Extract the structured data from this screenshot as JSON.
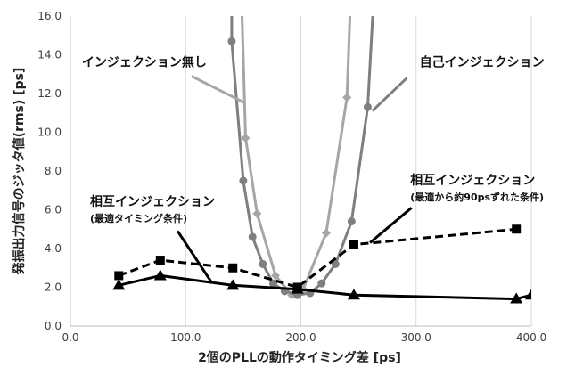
{
  "chart_data": {
    "type": "line",
    "xlabel": "2個のPLLの動作タイミング差 [ps]",
    "ylabel": "発振出力信号のジッタ値(rms) [ps]",
    "xlim": [
      0,
      400
    ],
    "ylim": [
      0,
      16
    ],
    "x_ticks": [
      "0.0",
      "100.0",
      "200.0",
      "300.0",
      "400.0"
    ],
    "y_ticks": [
      "0.0",
      "2.0",
      "4.0",
      "6.0",
      "8.0",
      "10.0",
      "12.0",
      "14.0",
      "16.0"
    ],
    "grid": "vertical",
    "series": [
      {
        "name": "インジェクション無し",
        "color": "#a6a6a6",
        "marker": "diamond",
        "dash": "solid",
        "points": [
          [
            147,
            20
          ],
          [
            152,
            9.7
          ],
          [
            162,
            5.8
          ],
          [
            178,
            2.6
          ],
          [
            192,
            1.6
          ],
          [
            202,
            1.9
          ],
          [
            222,
            4.8
          ],
          [
            240,
            11.8
          ],
          [
            245,
            20
          ]
        ]
      },
      {
        "name": "自己インジェクション",
        "color": "#7f7f7f",
        "marker": "circle",
        "dash": "solid",
        "points": [
          [
            140,
            20
          ],
          [
            140,
            14.7
          ],
          [
            150,
            7.5
          ],
          [
            158,
            4.6
          ],
          [
            167,
            3.2
          ],
          [
            176,
            2.2
          ],
          [
            186,
            1.8
          ],
          [
            197,
            1.6
          ],
          [
            208,
            1.7
          ],
          [
            218,
            2.2
          ],
          [
            230,
            3.2
          ],
          [
            244,
            5.4
          ],
          [
            258,
            11.3
          ],
          [
            266,
            20
          ]
        ]
      },
      {
        "name": "相互インジェクション(最適から約90psずれた条件)",
        "color": "#000000",
        "marker": "square",
        "dash": "dashed",
        "points": [
          [
            42,
            2.6
          ],
          [
            78,
            3.4
          ],
          [
            141,
            3.0
          ],
          [
            197,
            2.0
          ],
          [
            246,
            4.2
          ],
          [
            387,
            5.0
          ]
        ]
      },
      {
        "name": "相互インジェクション(最適タイミング条件)",
        "color": "#000000",
        "marker": "triangle",
        "dash": "solid",
        "points": [
          [
            42,
            2.1
          ],
          [
            78,
            2.6
          ],
          [
            141,
            2.1
          ],
          [
            197,
            1.9
          ],
          [
            246,
            1.6
          ],
          [
            387,
            1.4
          ],
          [
            400,
            1.6
          ]
        ]
      }
    ],
    "annotations": [
      {
        "text": "インジェクション無し",
        "x": 10,
        "y": 13.4,
        "pointer": [
          [
            105,
            12.9
          ],
          [
            152,
            11.5
          ]
        ],
        "pointer_color": "#a6a6a6"
      },
      {
        "text": "自己インジェクション",
        "x": 303,
        "y": 13.4,
        "pointer": [
          [
            292,
            12.8
          ],
          [
            262,
            11.1
          ]
        ],
        "pointer_color": "#7f7f7f"
      },
      {
        "text": "相互インジェクション",
        "subtext": "(最適から約90psずれた条件)",
        "x": 295,
        "y": 7.3,
        "pointer": [
          [
            296,
            6.1
          ],
          [
            260,
            4.3
          ]
        ],
        "pointer_color": "#000000"
      },
      {
        "text": "相互インジェクション",
        "subtext": "(最適タイミング条件)",
        "x": 17,
        "y": 6.2,
        "pointer": [
          [
            93,
            4.9
          ],
          [
            122,
            2.3
          ]
        ],
        "pointer_color": "#000000"
      }
    ]
  }
}
